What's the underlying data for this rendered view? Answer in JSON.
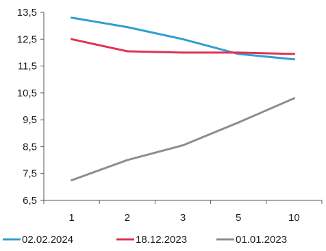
{
  "chart_data": {
    "type": "line",
    "categories": [
      "1",
      "2",
      "3",
      "5",
      "10"
    ],
    "y_ticks": [
      "13,5",
      "12,5",
      "11,5",
      "10,5",
      "9,5",
      "8,5",
      "7,5",
      "6,5"
    ],
    "ylim": [
      6.5,
      13.5
    ],
    "grid": false,
    "legend_position": "bottom",
    "series": [
      {
        "name": "02.02.2024",
        "color": "#2f9fd0",
        "values": [
          13.3,
          12.95,
          12.5,
          11.95,
          11.75
        ]
      },
      {
        "name": "18.12.2023",
        "color": "#e0334f",
        "values": [
          12.5,
          12.05,
          12.0,
          12.0,
          11.95
        ]
      },
      {
        "name": "01.01.2023",
        "color": "#8e8e8e",
        "values": [
          7.25,
          8.0,
          8.55,
          9.4,
          10.3
        ]
      }
    ]
  }
}
